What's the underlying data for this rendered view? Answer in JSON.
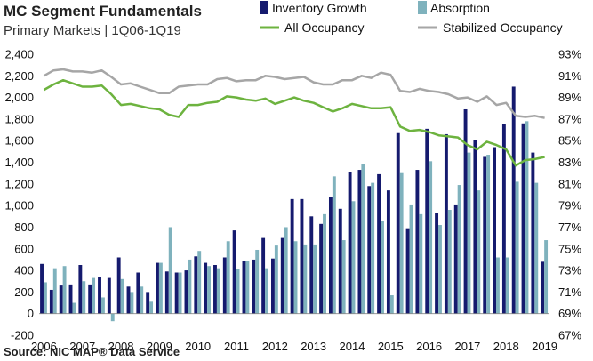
{
  "chart_data": {
    "type": "bar",
    "title": "MC Segment Fundamentals",
    "subtitle": "Primary Markets | 1Q06-1Q19",
    "source": "Source: NIC MAP® Data Service",
    "quarters": [
      "1Q06",
      "2Q06",
      "3Q06",
      "4Q06",
      "1Q07",
      "2Q07",
      "3Q07",
      "4Q07",
      "1Q08",
      "2Q08",
      "3Q08",
      "4Q08",
      "1Q09",
      "2Q09",
      "3Q09",
      "4Q09",
      "1Q10",
      "2Q10",
      "3Q10",
      "4Q10",
      "1Q11",
      "2Q11",
      "3Q11",
      "4Q11",
      "1Q12",
      "2Q12",
      "3Q12",
      "4Q12",
      "1Q13",
      "2Q13",
      "3Q13",
      "4Q13",
      "1Q14",
      "2Q14",
      "3Q14",
      "4Q14",
      "1Q15",
      "2Q15",
      "3Q15",
      "4Q15",
      "1Q16",
      "2Q16",
      "3Q16",
      "4Q16",
      "1Q17",
      "2Q17",
      "3Q17",
      "4Q17",
      "1Q18",
      "2Q18",
      "3Q18",
      "4Q18",
      "1Q19"
    ],
    "x_tick_labels": [
      "2006",
      "2007",
      "2008",
      "2009",
      "2010",
      "2011",
      "2012",
      "2013",
      "2014",
      "2015",
      "2016",
      "2017",
      "2018",
      "2019"
    ],
    "y_left": {
      "min": -200,
      "max": 2400,
      "step": 200,
      "tick_labels": [
        "-200",
        "0",
        "200",
        "400",
        "600",
        "800",
        "1,000",
        "1,200",
        "1,400",
        "1,600",
        "1,800",
        "2,000",
        "2,200",
        "2,400"
      ]
    },
    "y_right": {
      "min": 67,
      "max": 93,
      "step": 2,
      "tick_labels": [
        "67%",
        "69%",
        "71%",
        "73%",
        "75%",
        "77%",
        "79%",
        "81%",
        "83%",
        "85%",
        "87%",
        "89%",
        "91%",
        "93%"
      ]
    },
    "legend": [
      {
        "label": "Inventory Growth",
        "kind": "bar",
        "color": "#151a6e"
      },
      {
        "label": "Absorption",
        "kind": "bar",
        "color": "#7fb2bd"
      },
      {
        "label": "All Occupancy",
        "kind": "line",
        "color": "#6db33f"
      },
      {
        "label": "Stabilized Occupancy",
        "kind": "line",
        "color": "#a6a6a6"
      }
    ],
    "series": [
      {
        "name": "Inventory Growth",
        "axis": "left",
        "color": "#151a6e",
        "values": [
          460,
          220,
          260,
          270,
          450,
          270,
          340,
          330,
          520,
          250,
          380,
          200,
          470,
          390,
          380,
          400,
          530,
          470,
          450,
          520,
          770,
          490,
          500,
          700,
          510,
          700,
          1060,
          1060,
          900,
          830,
          1080,
          970,
          1310,
          1330,
          1180,
          1290,
          1140,
          1670,
          790,
          1330,
          1710,
          930,
          1660,
          1010,
          1890,
          1610,
          1450,
          1540,
          1750,
          2100,
          1760,
          1490,
          480
        ]
      },
      {
        "name": "Absorption",
        "axis": "left",
        "color": "#7fb2bd",
        "values": [
          290,
          420,
          440,
          100,
          300,
          330,
          150,
          -70,
          320,
          200,
          250,
          110,
          470,
          800,
          380,
          500,
          580,
          440,
          420,
          670,
          410,
          490,
          590,
          420,
          630,
          800,
          670,
          640,
          640,
          920,
          1270,
          680,
          1040,
          1380,
          1210,
          860,
          170,
          1300,
          1010,
          920,
          1410,
          820,
          960,
          1190,
          1490,
          1140,
          1470,
          520,
          520,
          1220,
          1780,
          1210,
          680
        ]
      },
      {
        "name": "All Occupancy",
        "axis": "right",
        "color": "#6db33f",
        "values": [
          89.7,
          90.2,
          90.6,
          90.3,
          90.0,
          90.0,
          90.1,
          89.3,
          88.3,
          88.4,
          88.2,
          88.0,
          87.9,
          87.4,
          87.2,
          88.3,
          88.3,
          88.5,
          88.6,
          89.1,
          89.0,
          88.8,
          88.7,
          88.9,
          88.4,
          88.7,
          89.0,
          88.7,
          88.5,
          88.1,
          87.7,
          88.0,
          88.4,
          88.2,
          88.0,
          88.0,
          88.1,
          86.3,
          85.9,
          86.0,
          85.8,
          85.5,
          85.4,
          85.3,
          84.6,
          84.2,
          84.9,
          84.6,
          84.2,
          82.7,
          83.2,
          83.3,
          83.5
        ]
      },
      {
        "name": "Stabilized Occupancy",
        "axis": "right",
        "color": "#a6a6a6",
        "values": [
          91.0,
          91.5,
          91.6,
          91.4,
          91.4,
          91.3,
          91.5,
          90.9,
          90.2,
          90.3,
          90.0,
          89.7,
          89.4,
          89.4,
          90.0,
          90.1,
          90.2,
          90.2,
          90.7,
          90.8,
          90.5,
          90.6,
          90.6,
          91.0,
          90.9,
          90.7,
          90.8,
          90.9,
          90.4,
          90.2,
          90.2,
          90.6,
          90.6,
          91.0,
          90.8,
          91.3,
          91.1,
          89.6,
          89.5,
          89.8,
          89.6,
          89.5,
          89.3,
          88.9,
          89.0,
          88.6,
          89.1,
          88.3,
          88.5,
          87.3,
          87.2,
          87.3,
          87.1
        ]
      }
    ],
    "grid": false,
    "legend_position": "top-right"
  }
}
